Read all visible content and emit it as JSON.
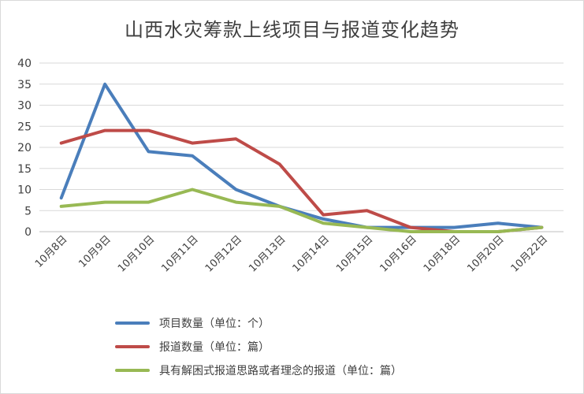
{
  "chart_data": {
    "type": "line",
    "title": "山西水灾筹款上线项目与报道变化趋势",
    "categories": [
      "10月8日",
      "10月9日",
      "10月10日",
      "10月11日",
      "10月12日",
      "10月13日",
      "10月14日",
      "10月15日",
      "10月16日",
      "10月18日",
      "10月20日",
      "10月22日"
    ],
    "ylim": [
      0,
      40
    ],
    "yticks": [
      0,
      5,
      10,
      15,
      20,
      25,
      30,
      35,
      40
    ],
    "grid": true,
    "legend_position": "bottom",
    "series": [
      {
        "name": "项目数量（单位：个）",
        "color": "#4a7ebb",
        "values": [
          8,
          35,
          19,
          18,
          10,
          6,
          3,
          1,
          1,
          1,
          2,
          1
        ]
      },
      {
        "name": "报道数量（单位：篇）",
        "color": "#be4b48",
        "values": [
          21,
          24,
          24,
          21,
          22,
          16,
          4,
          5,
          1,
          0,
          0,
          1
        ]
      },
      {
        "name": "具有解困式报道思路或者理念的报道（单位：篇）",
        "color": "#98b954",
        "values": [
          6,
          7,
          7,
          10,
          7,
          6,
          2,
          1,
          0,
          0,
          0,
          1
        ]
      }
    ]
  }
}
